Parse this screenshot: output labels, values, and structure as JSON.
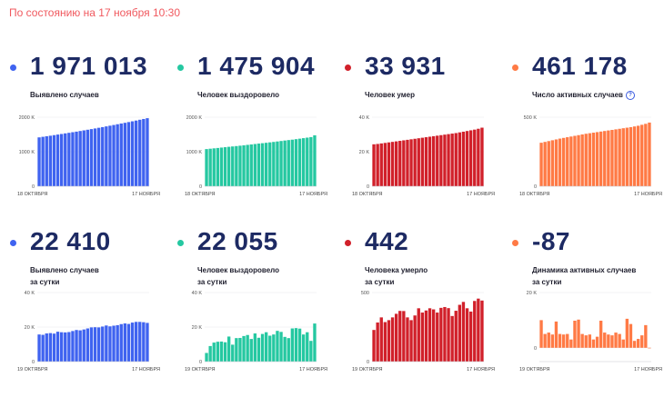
{
  "status": "По состоянию на 17 ноября 10:30",
  "cards": [
    {
      "value": "1 971 013",
      "label": [
        "Выявлено случаев"
      ],
      "color": "#3f63f0",
      "info": false,
      "dot_icon": "bullet-dot-icon"
    },
    {
      "value": "1 475 904",
      "label": [
        "Человек выздоровело"
      ],
      "color": "#25c8a1",
      "info": false,
      "dot_icon": "bullet-dot-icon"
    },
    {
      "value": "33 931",
      "label": [
        "Человек умер"
      ],
      "color": "#d1202a",
      "info": false,
      "dot_icon": "bullet-dot-icon"
    },
    {
      "value": "461 178",
      "label": [
        "Число активных случаев"
      ],
      "color": "#ff7a45",
      "info": true,
      "info_symbol": "?",
      "dot_icon": "bullet-dot-icon"
    },
    {
      "value": "22 410",
      "label": [
        "Выявлено случаев",
        "за сутки"
      ],
      "color": "#3f63f0",
      "info": false,
      "dot_icon": "bullet-dot-icon"
    },
    {
      "value": "22 055",
      "label": [
        "Человек выздоровело",
        "за сутки"
      ],
      "color": "#25c8a1",
      "info": false,
      "dot_icon": "bullet-dot-icon"
    },
    {
      "value": "442",
      "label": [
        "Человека умерло",
        "за сутки"
      ],
      "color": "#d1202a",
      "info": false,
      "dot_icon": "bullet-dot-icon"
    },
    {
      "value": "-87",
      "label": [
        "Динамика активных случаев",
        "за сутки"
      ],
      "color": "#ff7a45",
      "info": false,
      "dot_icon": "bullet-dot-icon"
    }
  ],
  "chart_data": [
    {
      "type": "bar",
      "series_color": "#3f63f0",
      "x_start": "18 ОКТЯБРЯ",
      "x_end": "17 НОЯБРЯ",
      "ylim": [
        0,
        2000000
      ],
      "yticks": [
        0,
        1000000,
        2000000
      ],
      "ytick_labels": [
        "0",
        "1000 K",
        "2000 K"
      ],
      "values": [
        1415316,
        1431731,
        1447335,
        1463306,
        1480646,
        1497167,
        1513877,
        1531224,
        1547774,
        1565210,
        1581693,
        1599976,
        1618116,
        1636781,
        1655038,
        1673686,
        1693454,
        1712858,
        1733440,
        1753836,
        1774334,
        1796132,
        1817109,
        1836960,
        1858568,
        1880551,
        1902639,
        1925825,
        1948603,
        1971013
      ]
    },
    {
      "type": "bar",
      "series_color": "#25c8a1",
      "x_start": "18 ОКТЯБРЯ",
      "x_end": "17 НОЯБРЯ",
      "ylim": [
        0,
        2000000
      ],
      "yticks": [
        0,
        1000000,
        2000000
      ],
      "ytick_labels": [
        "0",
        "1000 K",
        "2000 K"
      ],
      "values": [
        1075904,
        1087104,
        1097304,
        1108104,
        1119904,
        1131204,
        1142504,
        1152604,
        1163304,
        1174504,
        1185904,
        1198304,
        1210104,
        1222904,
        1235404,
        1246904,
        1258604,
        1270904,
        1283504,
        1296904,
        1310404,
        1324304,
        1337104,
        1349204,
        1363404,
        1377904,
        1392904,
        1407904,
        1423404,
        1475904
      ]
    },
    {
      "type": "bar",
      "series_color": "#d1202a",
      "x_start": "18 ОКТЯБРЯ",
      "x_end": "17 НОЯБРЯ",
      "ylim": [
        0,
        40000
      ],
      "yticks": [
        0,
        20000,
        40000
      ],
      "ytick_labels": [
        "0",
        "20 K",
        "40 K"
      ],
      "values": [
        24300,
        24500,
        24800,
        25100,
        25400,
        25700,
        26000,
        26300,
        26600,
        26900,
        27200,
        27500,
        27800,
        28100,
        28400,
        28700,
        29000,
        29300,
        29600,
        29900,
        30200,
        30500,
        30800,
        31200,
        31600,
        32000,
        32400,
        32800,
        33300,
        33931
      ]
    },
    {
      "type": "bar",
      "series_color": "#ff7a45",
      "x_start": "18 ОКТЯБРЯ",
      "x_end": "17 НОЯБРЯ",
      "ylim": [
        0,
        500000
      ],
      "yticks": [
        0,
        500000
      ],
      "ytick_labels": [
        "0",
        "500 K"
      ],
      "values": [
        315000,
        321000,
        327000,
        333000,
        339000,
        345000,
        350000,
        355000,
        360000,
        365000,
        370000,
        375000,
        380000,
        384000,
        388000,
        392000,
        396000,
        400000,
        404000,
        408000,
        412000,
        416000,
        420000,
        424000,
        428000,
        433000,
        438000,
        445000,
        452000,
        461178
      ]
    },
    {
      "type": "bar",
      "series_color": "#3f63f0",
      "x_start": "19 ОКТЯБРЯ",
      "x_end": "17 НОЯБРЯ",
      "ylim": [
        0,
        40000
      ],
      "yticks": [
        0,
        20000,
        40000
      ],
      "ytick_labels": [
        "0",
        "20 K",
        "40 K"
      ],
      "values": [
        15700,
        15500,
        16300,
        16500,
        16200,
        17300,
        17000,
        16900,
        17100,
        17700,
        18300,
        18100,
        18600,
        19200,
        19800,
        19900,
        19800,
        20300,
        20900,
        20400,
        20800,
        21100,
        21700,
        22100,
        21800,
        22600,
        23000,
        23000,
        22800,
        22410
      ]
    },
    {
      "type": "bar",
      "series_color": "#25c8a1",
      "x_start": "19 ОКТЯБРЯ",
      "x_end": "17 НОЯБРЯ",
      "ylim": [
        0,
        40000
      ],
      "yticks": [
        0,
        20000,
        40000
      ],
      "ytick_labels": [
        "0",
        "20 K",
        "40 K"
      ],
      "values": [
        5000,
        9000,
        11000,
        11500,
        11600,
        11200,
        14500,
        9800,
        13600,
        13700,
        14800,
        15400,
        13100,
        16300,
        13800,
        16000,
        17000,
        15000,
        15700,
        17800,
        17200,
        14300,
        13600,
        19200,
        19400,
        19100,
        15700,
        17000,
        12000,
        22055
      ]
    },
    {
      "type": "bar",
      "series_color": "#d1202a",
      "x_start": "19 ОКТЯБРЯ",
      "x_end": "17 НОЯБРЯ",
      "ylim": [
        0,
        500
      ],
      "yticks": [
        0,
        500
      ],
      "ytick_labels": [
        "0",
        "500"
      ],
      "values": [
        229,
        283,
        320,
        286,
        300,
        320,
        346,
        367,
        366,
        320,
        300,
        334,
        386,
        355,
        370,
        386,
        378,
        355,
        389,
        395,
        387,
        330,
        368,
        411,
        432,
        386,
        362,
        439,
        456,
        442
      ]
    },
    {
      "type": "bar",
      "series_color": "#ff7a45",
      "x_start": "19 ОКТЯБРЯ",
      "x_end": "17 НОЯБРЯ",
      "ylim": [
        -5000,
        20000
      ],
      "yticks": [
        0,
        20000
      ],
      "ytick_labels": [
        "0",
        "20 K"
      ],
      "values": [
        10000,
        5000,
        5500,
        4800,
        9500,
        5000,
        4800,
        5000,
        3000,
        9800,
        10200,
        5000,
        4500,
        4800,
        3000,
        4000,
        9800,
        5500,
        4800,
        4500,
        5500,
        5000,
        3000,
        10500,
        8600,
        2500,
        3200,
        4500,
        8200,
        -87
      ]
    }
  ]
}
